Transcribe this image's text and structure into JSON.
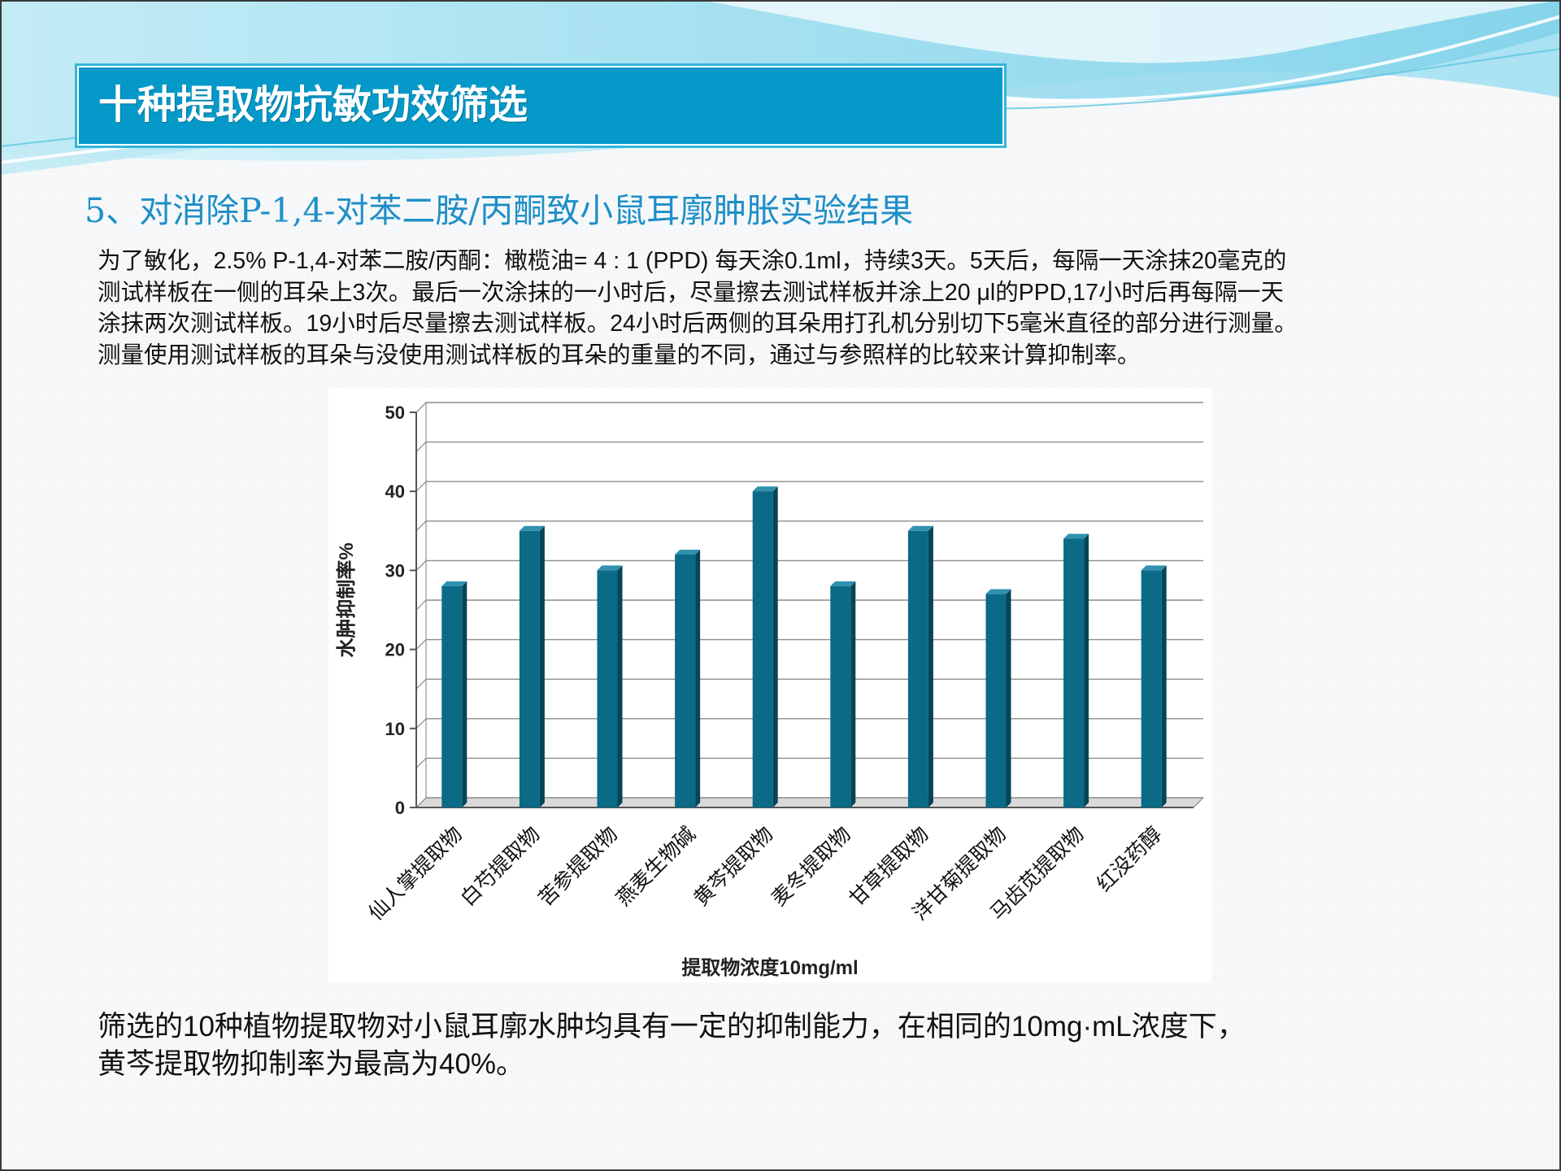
{
  "slide": {
    "title": "十种提取物抗敏功效筛选",
    "subtitle": "5、对消除P-1,4-对苯二胺/丙酮致小鼠耳廓肿胀实验结果",
    "description_lines": [
      "为了敏化，2.5% P-1,4-对苯二胺/丙酮：橄榄油= 4 : 1 (PPD) 每天涂0.1ml，持续3天。5天后，每隔一天涂抹20毫克的",
      "测试样板在一侧的耳朵上3次。最后一次涂抹的一小时后，尽量擦去测试样板并涂上20 μl的PPD,17小时后再每隔一天",
      "涂抹两次测试样板。19小时后尽量擦去测试样板。24小时后两侧的耳朵用打孔机分别切下5毫米直径的部分进行测量。",
      "测量使用测试样板的耳朵与没使用测试样板的耳朵的重量的不同，通过与参照样的比较来计算抑制率。"
    ],
    "conclusion_lines": [
      "筛选的10种植物提取物对小鼠耳廓水肿均具有一定的抑制能力，在相同的10mg·mL浓度下，",
      "黄芩提取物抑制率为最高为40%。"
    ]
  },
  "colors": {
    "title_bar": "#0599c9",
    "subtitle": "#1e8fc8",
    "bar_front": "#0b6a86",
    "bar_side": "#064557",
    "bar_top": "#2f92ae"
  },
  "chart_data": {
    "type": "bar",
    "three_d": true,
    "xlabel": "提取物浓度10mg/ml",
    "ylabel": "水肿抑制率%",
    "ylim": [
      0,
      50
    ],
    "yticks": [
      "0",
      "10",
      "20",
      "30",
      "40",
      "50"
    ],
    "grid": true,
    "legend": "none",
    "categories": [
      "仙人掌提取物",
      "白芍提取物",
      "苦参提取物",
      "燕麦生物碱",
      "黄芩提取物",
      "麦冬提取物",
      "甘草提取物",
      "洋甘菊提取物",
      "马齿苋提取物",
      "红没药醇"
    ],
    "values": [
      28,
      35,
      30,
      32,
      40,
      28,
      35,
      27,
      34,
      30
    ]
  }
}
